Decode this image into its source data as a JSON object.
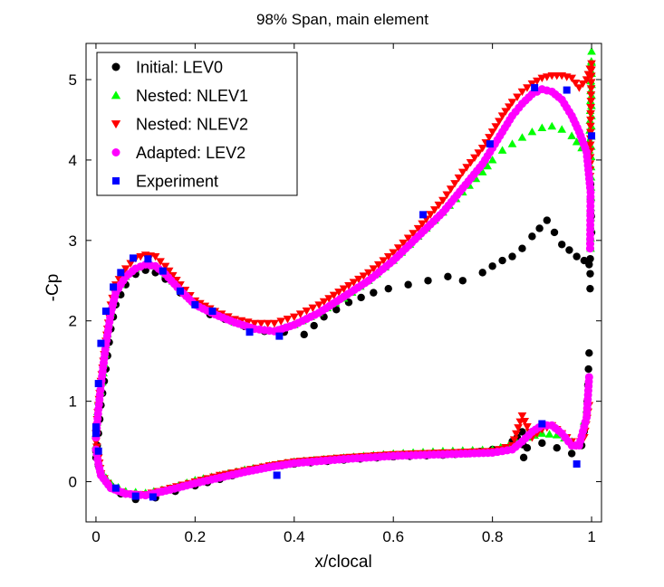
{
  "chart_data": {
    "type": "scatter",
    "title": "98% Span, main element",
    "xlabel": "x/clocal",
    "ylabel": "-Cp",
    "xlim": [
      -0.02,
      1.02
    ],
    "ylim": [
      -0.5,
      5.45
    ],
    "xticks": [
      0,
      0.2,
      0.4,
      0.6,
      0.8,
      1
    ],
    "xtick_labels": [
      "0",
      "0.2",
      "0.4",
      "0.6",
      "0.8",
      "1"
    ],
    "yticks": [
      0,
      1,
      2,
      3,
      4,
      5
    ],
    "ytick_labels": [
      "0",
      "1",
      "2",
      "3",
      "4",
      "5"
    ],
    "grid": false,
    "legend_position": "top-left",
    "series": [
      {
        "name": "Initial: LEV0",
        "marker": "circle",
        "color": "#000000",
        "upper": [
          [
            0.0,
            0.3
          ],
          [
            0.005,
            0.6
          ],
          [
            0.01,
            0.95
          ],
          [
            0.02,
            1.4
          ],
          [
            0.03,
            1.9
          ],
          [
            0.04,
            2.2
          ],
          [
            0.06,
            2.45
          ],
          [
            0.08,
            2.58
          ],
          [
            0.1,
            2.63
          ],
          [
            0.12,
            2.6
          ],
          [
            0.14,
            2.52
          ],
          [
            0.17,
            2.35
          ],
          [
            0.2,
            2.2
          ],
          [
            0.23,
            2.08
          ],
          [
            0.26,
            2.02
          ],
          [
            0.3,
            1.93
          ],
          [
            0.34,
            1.87
          ],
          [
            0.38,
            1.86
          ],
          [
            0.42,
            1.83
          ],
          [
            0.46,
            2.05
          ],
          [
            0.51,
            2.23
          ],
          [
            0.56,
            2.35
          ],
          [
            0.59,
            2.4
          ],
          [
            0.63,
            2.45
          ],
          [
            0.67,
            2.5
          ],
          [
            0.71,
            2.55
          ],
          [
            0.74,
            2.5
          ],
          [
            0.78,
            2.6
          ],
          [
            0.8,
            2.68
          ],
          [
            0.82,
            2.75
          ],
          [
            0.84,
            2.8
          ],
          [
            0.86,
            2.9
          ],
          [
            0.88,
            3.05
          ],
          [
            0.895,
            3.15
          ],
          [
            0.91,
            3.25
          ],
          [
            0.925,
            3.1
          ],
          [
            0.94,
            2.95
          ],
          [
            0.955,
            2.88
          ],
          [
            0.97,
            2.8
          ],
          [
            0.985,
            2.75
          ],
          [
            0.995,
            2.7
          ],
          [
            1.0,
            3.1
          ],
          [
            0.998,
            3.7
          ],
          [
            0.997,
            2.4
          ]
        ],
        "lower": [
          [
            0.0,
            0.38
          ],
          [
            0.005,
            0.2
          ],
          [
            0.01,
            0.1
          ],
          [
            0.03,
            -0.05
          ],
          [
            0.05,
            -0.15
          ],
          [
            0.08,
            -0.22
          ],
          [
            0.12,
            -0.2
          ],
          [
            0.16,
            -0.12
          ],
          [
            0.2,
            -0.05
          ],
          [
            0.25,
            0.03
          ],
          [
            0.3,
            0.12
          ],
          [
            0.35,
            0.18
          ],
          [
            0.4,
            0.22
          ],
          [
            0.5,
            0.27
          ],
          [
            0.6,
            0.31
          ],
          [
            0.7,
            0.33
          ],
          [
            0.75,
            0.35
          ],
          [
            0.8,
            0.4
          ],
          [
            0.84,
            0.5
          ],
          [
            0.85,
            0.55
          ],
          [
            0.86,
            0.62
          ],
          [
            0.863,
            0.3
          ],
          [
            0.87,
            0.42
          ],
          [
            0.9,
            0.48
          ],
          [
            0.93,
            0.42
          ],
          [
            0.96,
            0.35
          ],
          [
            0.98,
            0.45
          ],
          [
            0.99,
            0.8
          ],
          [
            0.995,
            1.6
          ]
        ]
      },
      {
        "name": "Nested: NLEV1",
        "marker": "triangle-up",
        "color": "#00ff00",
        "upper": [
          [
            0.0,
            0.6
          ],
          [
            0.005,
            1.0
          ],
          [
            0.01,
            1.12
          ],
          [
            0.015,
            1.35
          ],
          [
            0.02,
            1.7
          ],
          [
            0.03,
            2.1
          ],
          [
            0.04,
            2.35
          ],
          [
            0.06,
            2.55
          ],
          [
            0.08,
            2.65
          ],
          [
            0.1,
            2.72
          ],
          [
            0.12,
            2.68
          ],
          [
            0.14,
            2.58
          ],
          [
            0.17,
            2.4
          ],
          [
            0.2,
            2.22
          ],
          [
            0.24,
            2.1
          ],
          [
            0.28,
            1.98
          ],
          [
            0.32,
            1.9
          ],
          [
            0.36,
            1.88
          ],
          [
            0.4,
            1.95
          ],
          [
            0.45,
            2.1
          ],
          [
            0.5,
            2.28
          ],
          [
            0.55,
            2.5
          ],
          [
            0.6,
            2.75
          ],
          [
            0.65,
            3.05
          ],
          [
            0.7,
            3.35
          ],
          [
            0.74,
            3.6
          ],
          [
            0.78,
            3.85
          ],
          [
            0.8,
            4.0
          ],
          [
            0.82,
            4.12
          ],
          [
            0.84,
            4.2
          ],
          [
            0.86,
            4.28
          ],
          [
            0.88,
            4.35
          ],
          [
            0.9,
            4.4
          ],
          [
            0.92,
            4.42
          ],
          [
            0.94,
            4.38
          ],
          [
            0.96,
            4.3
          ],
          [
            0.98,
            4.15
          ],
          [
            0.995,
            4.0
          ],
          [
            1.0,
            5.35
          ],
          [
            1.0,
            4.8
          ],
          [
            0.998,
            2.9
          ]
        ],
        "lower": [
          [
            0.0,
            0.45
          ],
          [
            0.005,
            0.25
          ],
          [
            0.01,
            0.12
          ],
          [
            0.03,
            -0.02
          ],
          [
            0.06,
            -0.12
          ],
          [
            0.1,
            -0.14
          ],
          [
            0.15,
            -0.08
          ],
          [
            0.2,
            0.02
          ],
          [
            0.25,
            0.08
          ],
          [
            0.3,
            0.15
          ],
          [
            0.35,
            0.2
          ],
          [
            0.4,
            0.25
          ],
          [
            0.5,
            0.3
          ],
          [
            0.6,
            0.35
          ],
          [
            0.7,
            0.38
          ],
          [
            0.8,
            0.4
          ],
          [
            0.85,
            0.48
          ],
          [
            0.87,
            0.55
          ],
          [
            0.9,
            0.6
          ],
          [
            0.93,
            0.58
          ],
          [
            0.96,
            0.5
          ],
          [
            0.98,
            0.6
          ],
          [
            0.99,
            0.9
          ]
        ]
      },
      {
        "name": "Nested: NLEV2",
        "marker": "triangle-down",
        "color": "#ff0000",
        "upper": [
          [
            0.0,
            0.6
          ],
          [
            0.005,
            0.95
          ],
          [
            0.01,
            1.25
          ],
          [
            0.02,
            1.75
          ],
          [
            0.03,
            2.2
          ],
          [
            0.04,
            2.45
          ],
          [
            0.06,
            2.65
          ],
          [
            0.08,
            2.78
          ],
          [
            0.1,
            2.82
          ],
          [
            0.12,
            2.8
          ],
          [
            0.14,
            2.68
          ],
          [
            0.17,
            2.45
          ],
          [
            0.2,
            2.25
          ],
          [
            0.24,
            2.12
          ],
          [
            0.28,
            2.02
          ],
          [
            0.32,
            1.97
          ],
          [
            0.36,
            1.97
          ],
          [
            0.4,
            2.05
          ],
          [
            0.45,
            2.2
          ],
          [
            0.5,
            2.4
          ],
          [
            0.55,
            2.6
          ],
          [
            0.6,
            2.85
          ],
          [
            0.65,
            3.15
          ],
          [
            0.7,
            3.5
          ],
          [
            0.74,
            3.85
          ],
          [
            0.78,
            4.15
          ],
          [
            0.8,
            4.35
          ],
          [
            0.82,
            4.55
          ],
          [
            0.84,
            4.72
          ],
          [
            0.86,
            4.85
          ],
          [
            0.88,
            4.95
          ],
          [
            0.9,
            5.02
          ],
          [
            0.92,
            5.05
          ],
          [
            0.94,
            5.05
          ],
          [
            0.96,
            5.02
          ],
          [
            0.975,
            4.9
          ],
          [
            0.99,
            5.0
          ],
          [
            1.0,
            5.2
          ],
          [
            0.998,
            4.5
          ],
          [
            0.997,
            3.8
          ]
        ],
        "lower": [
          [
            0.0,
            0.5
          ],
          [
            0.005,
            0.3
          ],
          [
            0.01,
            0.1
          ],
          [
            0.03,
            -0.08
          ],
          [
            0.06,
            -0.15
          ],
          [
            0.1,
            -0.16
          ],
          [
            0.15,
            -0.08
          ],
          [
            0.2,
            0.0
          ],
          [
            0.25,
            0.08
          ],
          [
            0.3,
            0.14
          ],
          [
            0.35,
            0.2
          ],
          [
            0.4,
            0.25
          ],
          [
            0.5,
            0.3
          ],
          [
            0.6,
            0.34
          ],
          [
            0.7,
            0.36
          ],
          [
            0.8,
            0.38
          ],
          [
            0.84,
            0.45
          ],
          [
            0.86,
            0.82
          ],
          [
            0.88,
            0.55
          ],
          [
            0.9,
            0.65
          ],
          [
            0.92,
            0.7
          ],
          [
            0.95,
            0.55
          ],
          [
            0.97,
            0.45
          ],
          [
            0.985,
            0.55
          ],
          [
            0.995,
            0.95
          ]
        ]
      },
      {
        "name": "Adapted: LEV2",
        "marker": "circle",
        "color": "#ff00ff",
        "upper": [
          [
            0.0,
            0.55
          ],
          [
            0.005,
            0.9
          ],
          [
            0.01,
            1.2
          ],
          [
            0.02,
            1.7
          ],
          [
            0.03,
            2.1
          ],
          [
            0.04,
            2.35
          ],
          [
            0.06,
            2.55
          ],
          [
            0.08,
            2.65
          ],
          [
            0.1,
            2.7
          ],
          [
            0.12,
            2.68
          ],
          [
            0.14,
            2.58
          ],
          [
            0.17,
            2.38
          ],
          [
            0.2,
            2.2
          ],
          [
            0.24,
            2.08
          ],
          [
            0.28,
            1.98
          ],
          [
            0.32,
            1.9
          ],
          [
            0.36,
            1.87
          ],
          [
            0.4,
            1.95
          ],
          [
            0.45,
            2.1
          ],
          [
            0.5,
            2.3
          ],
          [
            0.55,
            2.5
          ],
          [
            0.6,
            2.75
          ],
          [
            0.65,
            3.05
          ],
          [
            0.7,
            3.35
          ],
          [
            0.74,
            3.65
          ],
          [
            0.78,
            3.95
          ],
          [
            0.8,
            4.15
          ],
          [
            0.82,
            4.35
          ],
          [
            0.84,
            4.55
          ],
          [
            0.86,
            4.7
          ],
          [
            0.88,
            4.82
          ],
          [
            0.9,
            4.88
          ],
          [
            0.92,
            4.85
          ],
          [
            0.94,
            4.75
          ],
          [
            0.96,
            4.55
          ],
          [
            0.975,
            4.35
          ],
          [
            0.99,
            4.1
          ],
          [
            0.998,
            3.6
          ],
          [
            0.997,
            2.9
          ]
        ],
        "lower": [
          [
            0.0,
            0.4
          ],
          [
            0.005,
            0.22
          ],
          [
            0.01,
            0.08
          ],
          [
            0.03,
            -0.08
          ],
          [
            0.06,
            -0.15
          ],
          [
            0.1,
            -0.17
          ],
          [
            0.15,
            -0.1
          ],
          [
            0.2,
            -0.02
          ],
          [
            0.25,
            0.05
          ],
          [
            0.3,
            0.12
          ],
          [
            0.35,
            0.18
          ],
          [
            0.4,
            0.23
          ],
          [
            0.5,
            0.28
          ],
          [
            0.6,
            0.32
          ],
          [
            0.7,
            0.34
          ],
          [
            0.8,
            0.36
          ],
          [
            0.84,
            0.4
          ],
          [
            0.86,
            0.5
          ],
          [
            0.88,
            0.62
          ],
          [
            0.9,
            0.7
          ],
          [
            0.92,
            0.7
          ],
          [
            0.94,
            0.6
          ],
          [
            0.96,
            0.45
          ],
          [
            0.975,
            0.45
          ],
          [
            0.99,
            0.8
          ],
          [
            0.995,
            1.3
          ]
        ]
      },
      {
        "name": "Experiment",
        "marker": "square",
        "color": "#0000ff",
        "upper": [
          [
            0.0,
            0.6
          ],
          [
            0.005,
            1.22
          ],
          [
            0.01,
            1.72
          ],
          [
            0.02,
            2.12
          ],
          [
            0.035,
            2.42
          ],
          [
            0.05,
            2.6
          ],
          [
            0.075,
            2.78
          ],
          [
            0.105,
            2.77
          ],
          [
            0.135,
            2.62
          ],
          [
            0.17,
            2.37
          ],
          [
            0.2,
            2.2
          ],
          [
            0.235,
            2.12
          ],
          [
            0.31,
            1.86
          ],
          [
            0.37,
            1.81
          ],
          [
            0.66,
            3.32
          ],
          [
            0.795,
            4.2
          ],
          [
            0.885,
            4.9
          ],
          [
            0.95,
            4.87
          ],
          [
            1.0,
            4.3
          ]
        ],
        "lower": [
          [
            0.0,
            0.68
          ],
          [
            0.005,
            0.38
          ],
          [
            0.04,
            -0.08
          ],
          [
            0.08,
            -0.18
          ],
          [
            0.115,
            -0.19
          ],
          [
            0.365,
            0.08
          ],
          [
            0.9,
            0.72
          ],
          [
            0.97,
            0.22
          ]
        ]
      }
    ]
  }
}
